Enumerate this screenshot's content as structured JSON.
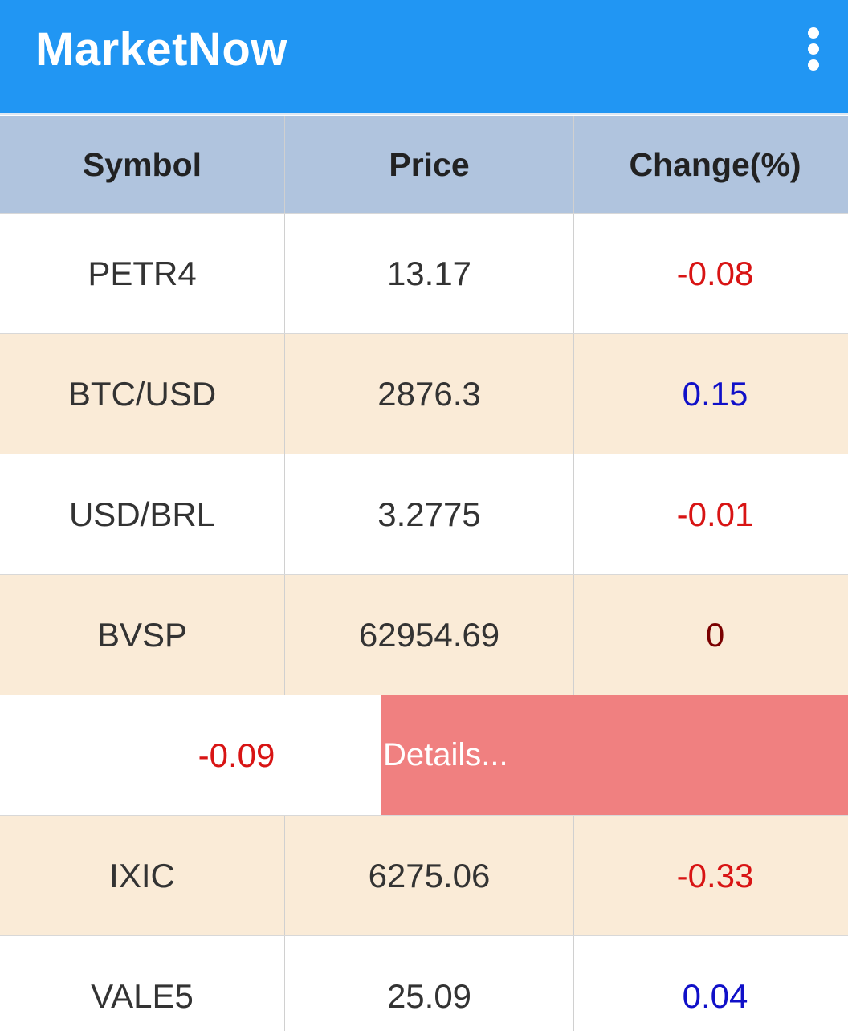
{
  "app": {
    "title": "MarketNow",
    "overflow_icon": "more-vert-icon"
  },
  "colors": {
    "appbar": "#2196F3",
    "header_row": "#B0C4DE",
    "alt_row": "#FAEBD7",
    "negative": "#D81414",
    "positive": "#1010C8",
    "zero": "#7A0000",
    "details_button": "#F08080"
  },
  "table": {
    "headers": [
      "Symbol",
      "Price",
      "Change(%)"
    ],
    "rows": [
      {
        "symbol": "PETR4",
        "price": "13.17",
        "change": "-0.08"
      },
      {
        "symbol": "BTC/USD",
        "price": "2876.3",
        "change": "0.15"
      },
      {
        "symbol": "USD/BRL",
        "price": "3.2775",
        "change": "-0.01"
      },
      {
        "symbol": "BVSP",
        "price": "62954.69",
        "change": "0"
      },
      {
        "change": "-0.09",
        "action_label": "Details..."
      },
      {
        "symbol": "IXIC",
        "price": "6275.06",
        "change": "-0.33"
      },
      {
        "symbol": "VALE5",
        "price": "25.09",
        "change": "0.04"
      }
    ]
  }
}
